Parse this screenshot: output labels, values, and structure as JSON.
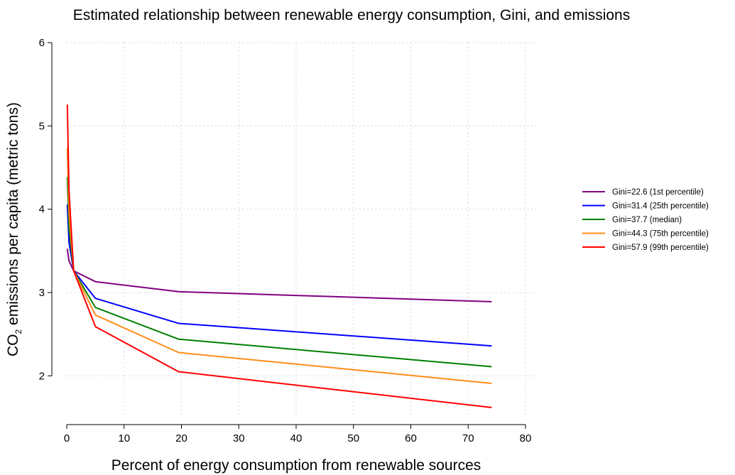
{
  "chart_data": {
    "type": "line",
    "title": "Estimated relationship between renewable energy consumption, Gini, and emissions",
    "xlabel": "Percent of energy consumption from renewable sources",
    "ylabel_prefix": "CO",
    "ylabel_sub": "2",
    "ylabel_suffix": " emissions per capita (metric tons)",
    "xlim": [
      0,
      80
    ],
    "ylim": [
      1.5,
      6
    ],
    "xticks": [
      0,
      10,
      20,
      30,
      40,
      50,
      60,
      70,
      80
    ],
    "yticks": [
      2,
      3,
      4,
      5,
      6
    ],
    "grid": true,
    "legend_position": "right",
    "x": [
      0.1,
      0.4,
      1.2,
      5.0,
      19.5,
      74.0
    ],
    "series": [
      {
        "name": "Gini=22.6 (1st percentile)",
        "color": "#800080",
        "values": [
          3.52,
          3.38,
          3.26,
          3.13,
          3.01,
          2.89
        ]
      },
      {
        "name": "Gini=31.4 (25th percentile)",
        "color": "#0000ff",
        "values": [
          4.05,
          3.6,
          3.26,
          2.93,
          2.63,
          2.36
        ]
      },
      {
        "name": "Gini=37.7 (median)",
        "color": "#008000",
        "values": [
          4.38,
          3.77,
          3.26,
          2.82,
          2.44,
          2.11
        ]
      },
      {
        "name": "Gini=44.3 (75th percentile)",
        "color": "#ff8c1a",
        "values": [
          4.73,
          3.95,
          3.26,
          2.73,
          2.28,
          1.91
        ]
      },
      {
        "name": "Gini=57.9 (99th percentile)",
        "color": "#ff0000",
        "values": [
          5.25,
          4.22,
          3.26,
          2.59,
          2.05,
          1.62
        ]
      }
    ]
  }
}
